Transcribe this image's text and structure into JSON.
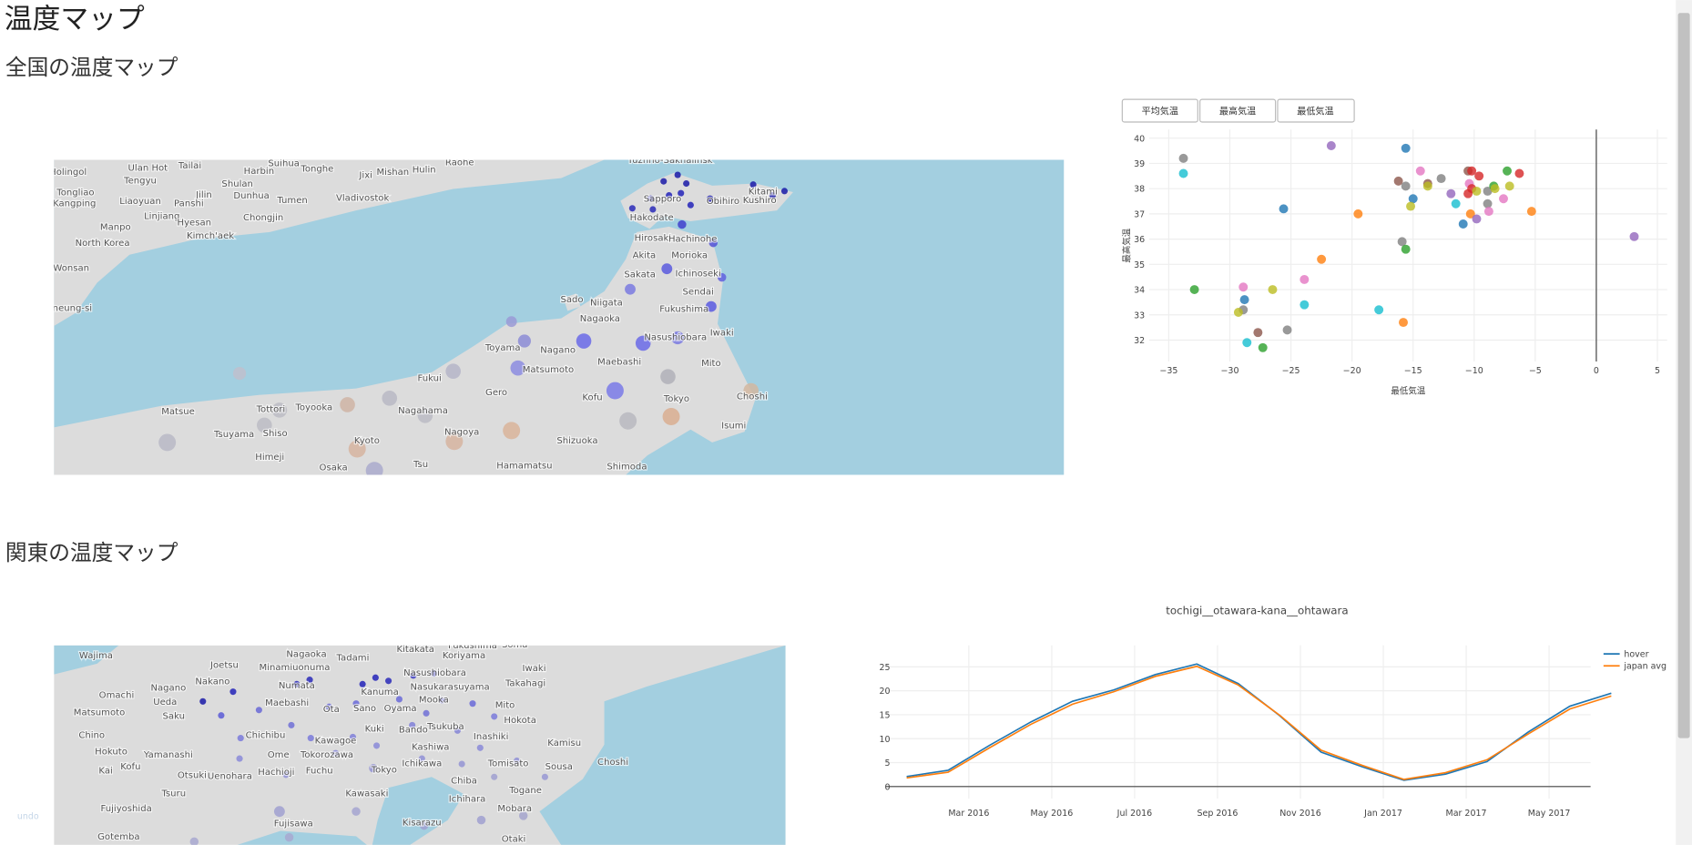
{
  "header": {
    "title": "温度マップ"
  },
  "national_section": {
    "title": "全国の温度マップ",
    "map": {
      "labels": [
        "Holingol",
        "Ulan Hot",
        "Tailai",
        "Suihua",
        "Tonghe",
        "Harbin",
        "Jixi",
        "Mishan",
        "Hulin",
        "Raohe",
        "Tongliao",
        "Tengyu",
        "Shulan",
        "Jilin",
        "Dunhua",
        "Liaoyuan",
        "Panshi",
        "Tumen",
        "Vladivostok",
        "Kangping",
        "Linjiang",
        "Chongjin",
        "Manpo",
        "Hyesan",
        "Kimch'aek",
        "North Korea",
        "Wonsan",
        "neung-si",
        "Yuzhno-Sakhalinsk",
        "Sapporo",
        "Obihiro",
        "Kitami",
        "Kushiro",
        "Hakodate",
        "Hirosaki",
        "Hachinohe",
        "Akita",
        "Morioka",
        "Ichinoseki",
        "Sakata",
        "Sendai",
        "Sado",
        "Niigata",
        "Fukushima",
        "Nagaoka",
        "Iwaki",
        "Nasushiobara",
        "Toyama",
        "Nagano",
        "Matsumoto",
        "Maebashi",
        "Mito",
        "Fukui",
        "Gero",
        "Kofu",
        "Tokyo",
        "Choshi",
        "Matsue",
        "Tottori",
        "Toyooka",
        "Nagahama",
        "Tsuyama",
        "Shiso",
        "Nagoya",
        "Isumi",
        "Kyoto",
        "Shizuoka",
        "Himeji",
        "Osaka",
        "Tsu",
        "Hamamatsu",
        "Shimoda"
      ]
    },
    "buttons": [
      "平均気温",
      "最高気温",
      "最低気温"
    ],
    "chart_data": {
      "type": "scatter",
      "x_label": "最低気温",
      "y_label": "最高気温",
      "x": [
        -33.8,
        -33.8,
        -21.7,
        -15.6,
        -32.9,
        -25.6,
        -19.5,
        -22.5,
        -15.9,
        -15.6,
        -28.9,
        -26.5,
        -28.8,
        -28.9,
        -29.3,
        -23.9,
        -23.9,
        -27.7,
        -25.3,
        -28.6,
        -27.3,
        -17.8,
        -15.8,
        -16.2,
        -15.6,
        -14.4,
        -15.0,
        -15.2,
        -13.8,
        -12.7,
        -13.8,
        -11.9,
        -11.5,
        -10.9,
        -10.5,
        -10.2,
        -9.6,
        -10.4,
        -10.2,
        -10.5,
        -9.8,
        -10.3,
        -9.8,
        -8.9,
        -8.9,
        -8.4,
        -8.8,
        -8.3,
        -7.3,
        -6.3,
        -7.6,
        -7.1,
        -5.3,
        3.1
      ],
      "y": [
        39.2,
        38.6,
        39.7,
        39.6,
        34.0,
        37.2,
        37.0,
        35.2,
        35.9,
        35.6,
        34.1,
        34.0,
        33.6,
        33.2,
        33.1,
        34.4,
        33.4,
        32.3,
        32.4,
        31.9,
        31.7,
        33.2,
        32.7,
        38.3,
        38.1,
        38.7,
        37.6,
        37.3,
        38.2,
        38.4,
        38.1,
        37.8,
        37.4,
        36.6,
        38.7,
        38.7,
        38.5,
        38.2,
        38.0,
        37.8,
        37.9,
        37.0,
        36.8,
        37.4,
        37.9,
        38.1,
        37.1,
        38.0,
        38.7,
        38.6,
        37.6,
        38.1,
        37.1,
        36.1
      ],
      "colors": [
        "#7f7f7f",
        "#17becf",
        "#9467bd",
        "#1f77b4",
        "#2ca02c",
        "#1f77b4",
        "#ff7f0e",
        "#ff7f0e",
        "#7f7f7f",
        "#2ca02c",
        "#e377c2",
        "#bcbd22",
        "#1f77b4",
        "#7f7f7f",
        "#bcbd22",
        "#e377c2",
        "#17becf",
        "#8c564b",
        "#7f7f7f",
        "#17becf",
        "#2ca02c",
        "#17becf",
        "#ff7f0e",
        "#8c564b",
        "#7f7f7f",
        "#e377c2",
        "#1f77b4",
        "#bcbd22",
        "#8c564b",
        "#7f7f7f",
        "#bcbd22",
        "#9467bd",
        "#17becf",
        "#1f77b4",
        "#8c564b",
        "#d62728",
        "#d62728",
        "#e377c2",
        "#d62728",
        "#d62728",
        "#bcbd22",
        "#ff7f0e",
        "#9467bd",
        "#7f7f7f",
        "#7f7f7f",
        "#2ca02c",
        "#e377c2",
        "#bcbd22",
        "#2ca02c",
        "#d62728",
        "#e377c2",
        "#bcbd22",
        "#ff7f0e",
        "#9467bd"
      ],
      "xlim": [
        -36.6,
        5.8
      ],
      "ylim": [
        31.15,
        40.34
      ],
      "xticks": [
        {
          "value": -35,
          "label": "−35"
        },
        {
          "value": -30,
          "label": "−30"
        },
        {
          "value": -25,
          "label": "−25"
        },
        {
          "value": -20,
          "label": "−20"
        },
        {
          "value": -15,
          "label": "−15"
        },
        {
          "value": -10,
          "label": "−10"
        },
        {
          "value": -5,
          "label": "−5"
        },
        0,
        5
      ],
      "yticks": [
        32,
        33,
        34,
        35,
        36,
        37,
        38,
        39,
        40
      ],
      "grid": true,
      "zero_line": true
    }
  },
  "kanto_section": {
    "title": "関東の温度マップ",
    "map": {
      "labels": [
        "Wajima",
        "Joetsu",
        "Nagaoka",
        "Tadami",
        "Kitakata",
        "Fukushima",
        "Soma",
        "Koriyama",
        "Iwaki",
        "Minamiuonuma",
        "Nasushiobara",
        "Nasukarasuyama",
        "Takahagi",
        "Nagano",
        "Nakano",
        "Numata",
        "Kanuma",
        "Omachi",
        "Maebashi",
        "Mooka",
        "Ueda",
        "Saku",
        "Oyama",
        "Ota",
        "Sano",
        "Mito",
        "Matsumoto",
        "Hokota",
        "Chino",
        "Chichibu",
        "Kawagoe",
        "Kuki",
        "Bando",
        "Tsukuba",
        "Inashiki",
        "Kamisu",
        "Hokuto",
        "Yamanashi",
        "Kashiwa",
        "Ome",
        "Tokorozawa",
        "Kai",
        "Kofu",
        "Otsuki",
        "Uenohara",
        "Hachioji",
        "Fuchu",
        "Tokyo",
        "Ichikawa",
        "Tomisato",
        "Sousa",
        "Choshi",
        "Chiba",
        "Tsuru",
        "Kawasaki",
        "Ichihara",
        "Fujiyoshida",
        "Fujisawa",
        "Kisarazu",
        "Mobara",
        "Togane",
        "Gotemba",
        "Otaki"
      ]
    },
    "chart_data": {
      "type": "line",
      "title": "tochigi__otawara-kana__ohtawara",
      "x": [
        "2016-01",
        "2016-02",
        "2016-03",
        "2016-04",
        "2016-05",
        "2016-06",
        "2016-07",
        "2016-08",
        "2016-09",
        "2016-10",
        "2016-11",
        "2016-12",
        "2017-01",
        "2017-02",
        "2017-03",
        "2017-04",
        "2017-05",
        "2017-06"
      ],
      "series": [
        {
          "name": "hover",
          "color": "#1f77b4",
          "values": [
            2.1,
            3.4,
            8.6,
            13.5,
            17.8,
            20.2,
            23.4,
            25.6,
            21.5,
            14.8,
            7.2,
            4.1,
            1.3,
            2.6,
            5.2,
            11.4,
            16.8,
            19.5
          ]
        },
        {
          "name": "japan avg",
          "color": "#ff7f0e",
          "values": [
            1.8,
            3.0,
            8.1,
            13.0,
            17.2,
            19.8,
            23.0,
            25.1,
            21.2,
            14.9,
            7.6,
            4.4,
            1.5,
            2.9,
            5.6,
            11.0,
            16.2,
            18.9
          ]
        }
      ],
      "xlim": [
        "2016-01",
        "2017-06"
      ],
      "ylim": [
        -2.5,
        29.5
      ],
      "xticks": [
        {
          "value": "2016-03",
          "label": "Mar 2016"
        },
        {
          "value": "2016-05",
          "label": "May 2016"
        },
        {
          "value": "2016-07",
          "label": "Jul 2016"
        },
        {
          "value": "2016-09",
          "label": "Sep 2016"
        },
        {
          "value": "2016-11",
          "label": "Nov 2016"
        },
        {
          "value": "2017-01",
          "label": "Jan 2017"
        },
        {
          "value": "2017-03",
          "label": "Mar 2017"
        },
        {
          "value": "2017-05",
          "label": "May 2017"
        }
      ],
      "yticks": [
        0,
        5,
        10,
        15,
        20,
        25
      ],
      "grid": true,
      "zero_line": true,
      "legend": "top-right"
    }
  },
  "undo": "undo"
}
